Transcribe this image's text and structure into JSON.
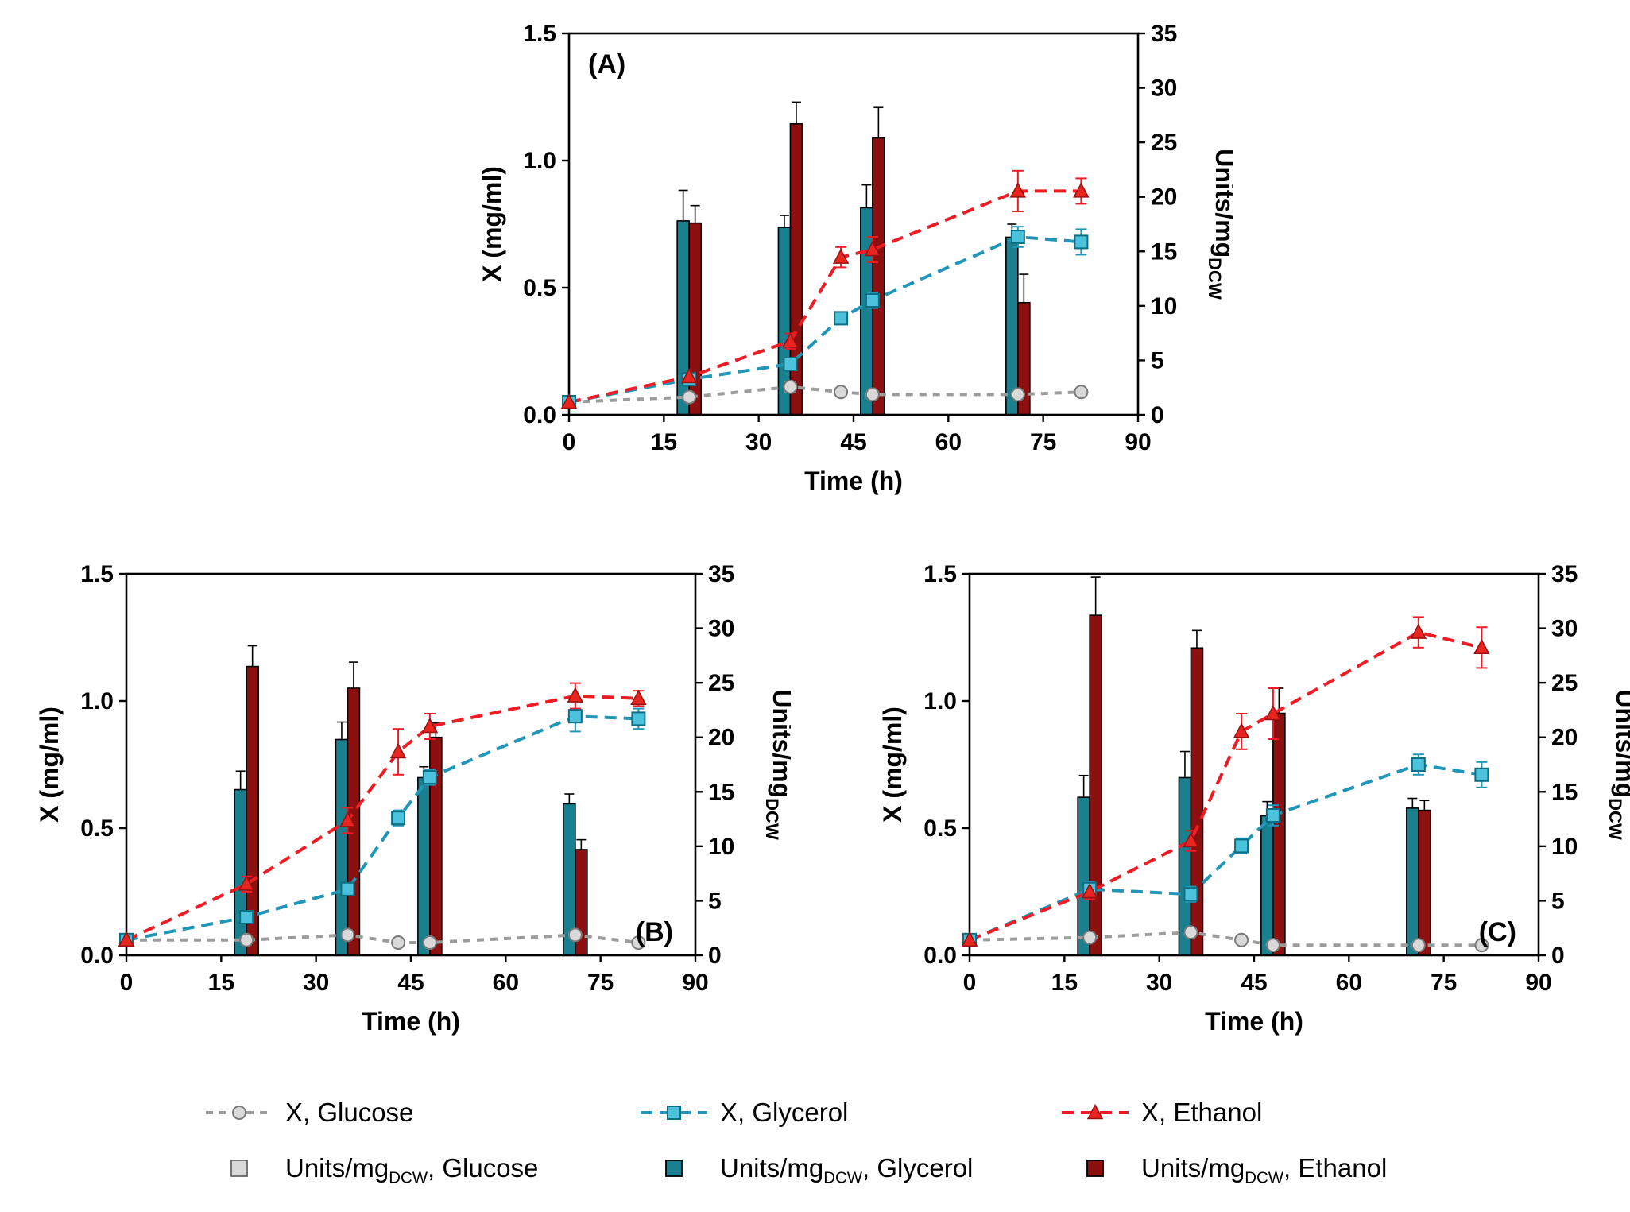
{
  "figure": {
    "legend": {
      "rows": [
        {
          "items": [
            {
              "pre": "X, Glucose",
              "sub": "",
              "post": "",
              "swatch": {
                "kind": "line",
                "color": "#9c9c9c",
                "dash": "9 8",
                "marker": "circle",
                "marker_fill": "#d9d9d9",
                "marker_stroke": "#7a7a7a"
              }
            },
            {
              "pre": "X, Glycerol",
              "sub": "",
              "post": "",
              "swatch": {
                "kind": "line",
                "color": "#2196b8",
                "dash": "15 9",
                "marker": "square",
                "marker_fill": "#4cc2dc",
                "marker_stroke": "#0d6e84"
              }
            },
            {
              "pre": "X, Ethanol",
              "sub": "",
              "post": "",
              "swatch": {
                "kind": "line",
                "color": "#ee1c24",
                "dash": "15 9",
                "marker": "triangle",
                "marker_fill": "#e8261f",
                "marker_stroke": "#991111"
              }
            }
          ]
        },
        {
          "items": [
            {
              "pre": "Units/mg",
              "sub": "DCW",
              "post": ", Glucose",
              "swatch": {
                "kind": "square",
                "fill": "#d9d9d9",
                "stroke": "#666666"
              }
            },
            {
              "pre": "Units/mg",
              "sub": "DCW",
              "post": ", Glycerol",
              "swatch": {
                "kind": "square",
                "fill": "#1a7f8e",
                "stroke": "#000000"
              }
            },
            {
              "pre": "Units/mg",
              "sub": "DCW",
              "post": ", Ethanol",
              "swatch": {
                "kind": "square",
                "fill": "#8c1010",
                "stroke": "#000000"
              }
            }
          ]
        }
      ]
    }
  },
  "chart_data": [
    {
      "type": "bar+line",
      "label": "(A)",
      "label_pos": "top-left",
      "xlabel": "Time (h)",
      "ylabel_left": "X (mg/ml)",
      "ylabel_right": {
        "main": "Units/mg",
        "sub": "DCW"
      },
      "xlim": [
        0,
        90
      ],
      "xticks": [
        0,
        15,
        30,
        45,
        60,
        75,
        90
      ],
      "xtick_labels": [
        "0",
        "15",
        "30",
        "45",
        "60",
        "75",
        "90"
      ],
      "ylim_left": [
        0,
        1.5
      ],
      "yticks_left": [
        0,
        0.5,
        1,
        1.5
      ],
      "ytick_labels_left": [
        "0.0",
        "0.5",
        "1.0",
        "1.5"
      ],
      "ylim_right": [
        0,
        35
      ],
      "yticks_right": [
        0,
        5,
        10,
        15,
        20,
        25,
        30,
        35
      ],
      "ytick_labels_right": [
        "0",
        "5",
        "10",
        "15",
        "20",
        "25",
        "30",
        "35"
      ],
      "grid": false,
      "lines": [
        {
          "name": "X, Glucose",
          "color": "#9c9c9c",
          "dash": "9 8",
          "marker": "circle",
          "marker_fill": "#d9d9d9",
          "marker_stroke": "#7a7a7a",
          "x": [
            0,
            19,
            35,
            43,
            48,
            71,
            81
          ],
          "y": [
            0.05,
            0.07,
            0.11,
            0.09,
            0.08,
            0.08,
            0.09
          ],
          "err": [
            0,
            0,
            0.02,
            0,
            0,
            0,
            0
          ]
        },
        {
          "name": "X, Glycerol",
          "color": "#2196b8",
          "dash": "15 9",
          "marker": "square",
          "marker_fill": "#4cc2dc",
          "marker_stroke": "#0d6e84",
          "x": [
            0,
            19,
            35,
            43,
            48,
            71,
            81
          ],
          "y": [
            0.05,
            0.14,
            0.2,
            0.38,
            0.45,
            0.7,
            0.68
          ],
          "err": [
            0,
            0.02,
            0.02,
            0.02,
            0.03,
            0.04,
            0.05
          ]
        },
        {
          "name": "X, Ethanol",
          "color": "#ee1c24",
          "dash": "15 9",
          "marker": "triangle",
          "marker_fill": "#e8261f",
          "marker_stroke": "#991111",
          "x": [
            0,
            19,
            35,
            43,
            48,
            71,
            81
          ],
          "y": [
            0.05,
            0.15,
            0.29,
            0.62,
            0.65,
            0.88,
            0.88
          ],
          "err": [
            0,
            0,
            0.03,
            0.04,
            0.05,
            0.08,
            0.05
          ]
        }
      ],
      "bars": [
        {
          "name": "Units/mgDCW, Glycerol",
          "color": "#1a7f8e",
          "x": [
            19,
            35,
            48,
            71
          ],
          "y": [
            17.8,
            17.2,
            19.0,
            16.3
          ],
          "err": [
            2.8,
            1.1,
            2.1,
            1.2
          ]
        },
        {
          "name": "Units/mgDCW, Ethanol",
          "color": "#8c1010",
          "x": [
            19,
            35,
            48,
            71
          ],
          "y": [
            17.6,
            26.7,
            25.4,
            10.3
          ],
          "err": [
            1.6,
            2.0,
            2.8,
            2.6
          ]
        }
      ]
    },
    {
      "type": "bar+line",
      "label": "(B)",
      "label_pos": "bottom-right",
      "xlabel": "Time (h)",
      "ylabel_left": "X (mg/ml)",
      "ylabel_right": {
        "main": "Units/mg",
        "sub": "DCW"
      },
      "xlim": [
        0,
        90
      ],
      "xticks": [
        0,
        15,
        30,
        45,
        60,
        75,
        90
      ],
      "xtick_labels": [
        "0",
        "15",
        "30",
        "45",
        "60",
        "75",
        "90"
      ],
      "ylim_left": [
        0,
        1.5
      ],
      "yticks_left": [
        0,
        0.5,
        1,
        1.5
      ],
      "ytick_labels_left": [
        "0.0",
        "0.5",
        "1.0",
        "1.5"
      ],
      "ylim_right": [
        0,
        35
      ],
      "yticks_right": [
        0,
        5,
        10,
        15,
        20,
        25,
        30,
        35
      ],
      "ytick_labels_right": [
        "0",
        "5",
        "10",
        "15",
        "20",
        "25",
        "30",
        "35"
      ],
      "grid": false,
      "lines": [
        {
          "name": "X, Glucose",
          "color": "#9c9c9c",
          "dash": "9 8",
          "marker": "circle",
          "marker_fill": "#d9d9d9",
          "marker_stroke": "#7a7a7a",
          "x": [
            0,
            19,
            35,
            43,
            48,
            71,
            81
          ],
          "y": [
            0.06,
            0.06,
            0.08,
            0.05,
            0.05,
            0.08,
            0.05
          ],
          "err": [
            0,
            0,
            0,
            0,
            0,
            0,
            0
          ]
        },
        {
          "name": "X, Glycerol",
          "color": "#2196b8",
          "dash": "15 9",
          "marker": "square",
          "marker_fill": "#4cc2dc",
          "marker_stroke": "#0d6e84",
          "x": [
            0,
            19,
            35,
            43,
            48,
            71,
            81
          ],
          "y": [
            0.06,
            0.15,
            0.26,
            0.54,
            0.7,
            0.94,
            0.93
          ],
          "err": [
            0,
            0.02,
            0.02,
            0.03,
            0.03,
            0.06,
            0.04
          ]
        },
        {
          "name": "X, Ethanol",
          "color": "#ee1c24",
          "dash": "15 9",
          "marker": "triangle",
          "marker_fill": "#e8261f",
          "marker_stroke": "#991111",
          "x": [
            0,
            19,
            35,
            43,
            48,
            71,
            81
          ],
          "y": [
            0.06,
            0.28,
            0.53,
            0.8,
            0.9,
            1.02,
            1.01
          ],
          "err": [
            0,
            0.03,
            0.05,
            0.09,
            0.05,
            0.05,
            0.03
          ]
        }
      ],
      "bars": [
        {
          "name": "Units/mgDCW, Glycerol",
          "color": "#1a7f8e",
          "x": [
            19,
            35,
            48,
            71
          ],
          "y": [
            15.2,
            19.8,
            16.3,
            13.9
          ],
          "err": [
            1.7,
            1.6,
            1.0,
            0.9
          ]
        },
        {
          "name": "Units/mgDCW, Ethanol",
          "color": "#8c1010",
          "x": [
            19,
            35,
            48,
            71
          ],
          "y": [
            26.5,
            24.5,
            20.0,
            9.7
          ],
          "err": [
            1.9,
            2.4,
            1.3,
            0.9
          ]
        }
      ]
    },
    {
      "type": "bar+line",
      "label": "(C)",
      "label_pos": "bottom-right",
      "xlabel": "Time (h)",
      "ylabel_left": "X (mg/ml)",
      "ylabel_right": {
        "main": "Units/mg",
        "sub": "DCW"
      },
      "xlim": [
        0,
        90
      ],
      "xticks": [
        0,
        15,
        30,
        45,
        60,
        75,
        90
      ],
      "xtick_labels": [
        "0",
        "15",
        "30",
        "45",
        "60",
        "75",
        "90"
      ],
      "ylim_left": [
        0,
        1.5
      ],
      "yticks_left": [
        0,
        0.5,
        1,
        1.5
      ],
      "ytick_labels_left": [
        "0.0",
        "0.5",
        "1.0",
        "1.5"
      ],
      "ylim_right": [
        0,
        35
      ],
      "yticks_right": [
        0,
        5,
        10,
        15,
        20,
        25,
        30,
        35
      ],
      "ytick_labels_right": [
        "0",
        "5",
        "10",
        "15",
        "20",
        "25",
        "30",
        "35"
      ],
      "grid": false,
      "lines": [
        {
          "name": "X, Glucose",
          "color": "#9c9c9c",
          "dash": "9 8",
          "marker": "circle",
          "marker_fill": "#d9d9d9",
          "marker_stroke": "#7a7a7a",
          "x": [
            0,
            19,
            35,
            43,
            48,
            71,
            81
          ],
          "y": [
            0.06,
            0.07,
            0.09,
            0.06,
            0.04,
            0.04,
            0.04
          ],
          "err": [
            0,
            0,
            0,
            0,
            0,
            0,
            0
          ]
        },
        {
          "name": "X, Glycerol",
          "color": "#2196b8",
          "dash": "15 9",
          "marker": "square",
          "marker_fill": "#4cc2dc",
          "marker_stroke": "#0d6e84",
          "x": [
            0,
            19,
            35,
            43,
            48,
            71,
            81
          ],
          "y": [
            0.06,
            0.26,
            0.24,
            0.43,
            0.55,
            0.75,
            0.71
          ],
          "err": [
            0,
            0.03,
            0.03,
            0.03,
            0.04,
            0.04,
            0.05
          ]
        },
        {
          "name": "X, Ethanol",
          "color": "#ee1c24",
          "dash": "15 9",
          "marker": "triangle",
          "marker_fill": "#e8261f",
          "marker_stroke": "#991111",
          "x": [
            0,
            19,
            35,
            43,
            48,
            71,
            81
          ],
          "y": [
            0.06,
            0.25,
            0.45,
            0.88,
            0.95,
            1.27,
            1.21
          ],
          "err": [
            0,
            0.03,
            0.04,
            0.07,
            0.1,
            0.06,
            0.08
          ]
        }
      ],
      "bars": [
        {
          "name": "Units/mgDCW, Glycerol",
          "color": "#1a7f8e",
          "x": [
            19,
            35,
            48,
            71
          ],
          "y": [
            14.5,
            16.3,
            12.8,
            13.5
          ],
          "err": [
            2.0,
            2.4,
            1.3,
            0.9
          ]
        },
        {
          "name": "Units/mgDCW, Ethanol",
          "color": "#8c1010",
          "x": [
            19,
            35,
            48,
            71
          ],
          "y": [
            31.2,
            28.2,
            22.2,
            13.3
          ],
          "err": [
            3.5,
            1.6,
            2.3,
            0.9
          ]
        }
      ]
    }
  ]
}
